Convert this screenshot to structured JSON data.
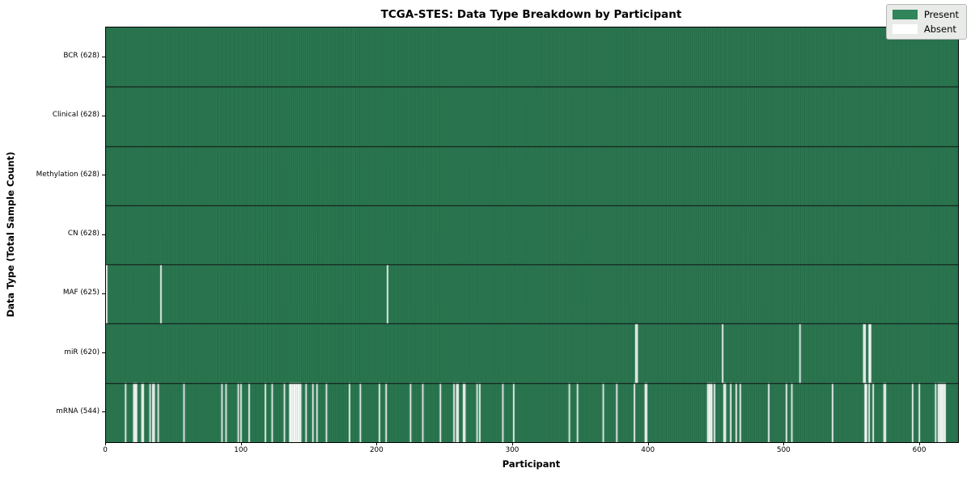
{
  "chart_data": {
    "type": "heatmap",
    "title": "TCGA-STES: Data Type Breakdown by Participant",
    "xlabel": "Participant",
    "ylabel": "Data Type (Total Sample Count)",
    "n_participants": 628,
    "x_ticks": [
      0,
      100,
      200,
      300,
      400,
      500,
      600
    ],
    "legend": {
      "position": "upper right",
      "entries": [
        {
          "label": "Present",
          "color": "#31855A"
        },
        {
          "label": "Absent",
          "color": "#ffffff"
        }
      ]
    },
    "colors": {
      "present": "#31855A",
      "absent": "#ffffff",
      "cell_edge": "rgba(8,28,18,0.45)",
      "row_separator": "#111111",
      "plot_border": "#000000"
    },
    "grid": "cell-edges-on",
    "rows": [
      {
        "label": "BCR (628)",
        "data_type": "BCR",
        "present_count": 628,
        "absent_participants": []
      },
      {
        "label": "Clinical (628)",
        "data_type": "Clinical",
        "present_count": 628,
        "absent_participants": []
      },
      {
        "label": "Methylation (628)",
        "data_type": "Methylation",
        "present_count": 628,
        "absent_participants": []
      },
      {
        "label": "CN (628)",
        "data_type": "CN",
        "present_count": 628,
        "absent_participants": []
      },
      {
        "label": "MAF (625)",
        "data_type": "MAF",
        "present_count": 625,
        "absent_participants": [
          0,
          40,
          207
        ]
      },
      {
        "label": "miR (620)",
        "data_type": "miR",
        "present_count": 620,
        "absent_participants": [
          390,
          391,
          454,
          511,
          558,
          559,
          562,
          563
        ]
      },
      {
        "label": "mRNA (544)",
        "data_type": "mRNA",
        "present_count": 544,
        "absent_participants": [
          14,
          20,
          21,
          22,
          26,
          27,
          32,
          34,
          35,
          38,
          57,
          85,
          88,
          97,
          99,
          105,
          117,
          122,
          131,
          135,
          136,
          137,
          138,
          139,
          140,
          141,
          142,
          143,
          147,
          152,
          155,
          162,
          179,
          187,
          201,
          206,
          224,
          233,
          246,
          256,
          258,
          259,
          263,
          264,
          273,
          275,
          292,
          300,
          341,
          347,
          366,
          376,
          389,
          397,
          398,
          443,
          444,
          445,
          446,
          448,
          455,
          456,
          460,
          464,
          467,
          488,
          501,
          505,
          535,
          559,
          560,
          562,
          565,
          573,
          574,
          594,
          599,
          611,
          613,
          614,
          615,
          616,
          617,
          618
        ]
      }
    ]
  }
}
